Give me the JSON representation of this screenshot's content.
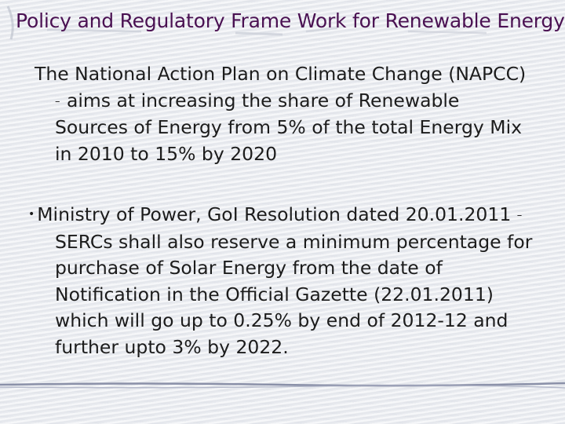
{
  "slide": {
    "title": "Policy and Regulatory Frame Work for Renewable Energy",
    "paragraph1": {
      "lines": [
        "The National Action Plan on Climate Change (NAPCC)",
        "aims at increasing the share of Renewable",
        "Sources of Energy from 5% of the total Energy Mix",
        "in 2010 to 15% by 2020"
      ],
      "dash": "–"
    },
    "paragraph2": {
      "bullet": "•",
      "lines": [
        "Ministry of Power, GoI Resolution dated 20.01.2011",
        "SERCs shall also reserve a minimum percentage for",
        "purchase of Solar Energy from the date of",
        "Notification in the Official Gazette (22.01.2011)",
        "which will go up to 0.25% by end of 2012-12 and",
        "further upto 3% by 2022."
      ],
      "dash": "–"
    }
  }
}
